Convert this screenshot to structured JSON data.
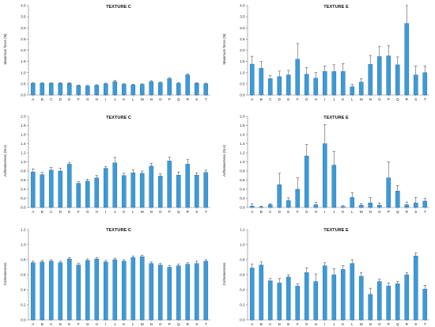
{
  "bar_color": "#3d9ad8",
  "bar_edge_color": "#1d5f8e",
  "chart_data": [
    {
      "type": "bar",
      "title": "TEXTURE C",
      "ylabel": "Maximum force (N)",
      "xlabel": "",
      "ylim": [
        0,
        4.0
      ],
      "yticks": [
        "0.0",
        "0.5",
        "1.0",
        "1.5",
        "2.0",
        "2.5",
        "3.0",
        "3.5",
        "4.0"
      ],
      "grid": false,
      "categories": [
        "A",
        "B",
        "C",
        "D",
        "E",
        "F",
        "G",
        "H",
        "I",
        "J",
        "K",
        "L",
        "M",
        "N",
        "O",
        "P",
        "Q",
        "R",
        "S",
        "T"
      ],
      "values": [
        0.52,
        0.52,
        0.52,
        0.52,
        0.52,
        0.42,
        0.4,
        0.43,
        0.5,
        0.6,
        0.48,
        0.45,
        0.47,
        0.6,
        0.55,
        0.73,
        0.52,
        0.9,
        0.52,
        0.5
      ],
      "errors": [
        0.03,
        0.03,
        0.03,
        0.03,
        0.03,
        0.03,
        0.03,
        0.03,
        0.03,
        0.05,
        0.03,
        0.03,
        0.03,
        0.04,
        0.03,
        0.05,
        0.04,
        0.04,
        0.03,
        0.03
      ]
    },
    {
      "type": "bar",
      "title": "TEXTURE E",
      "ylabel": "Maximum force (N)",
      "xlabel": "",
      "ylim": [
        0,
        4.0
      ],
      "yticks": [
        "0.0",
        "0.5",
        "1.0",
        "1.5",
        "2.0",
        "2.5",
        "3.0",
        "3.5",
        "4.0"
      ],
      "grid": false,
      "categories": [
        "A",
        "B",
        "C",
        "D",
        "E",
        "F",
        "G",
        "H",
        "I",
        "J",
        "K",
        "L",
        "M",
        "N",
        "O",
        "P",
        "Q",
        "R",
        "S",
        "T"
      ],
      "values": [
        1.38,
        1.2,
        0.73,
        0.82,
        0.9,
        1.6,
        0.93,
        0.75,
        1.05,
        1.05,
        1.05,
        0.37,
        0.58,
        1.37,
        1.72,
        1.75,
        1.35,
        3.2,
        0.9,
        1.0
      ],
      "errors": [
        0.35,
        0.3,
        0.15,
        0.25,
        0.2,
        0.7,
        0.3,
        0.25,
        0.25,
        0.3,
        0.35,
        0.1,
        0.15,
        0.4,
        0.45,
        0.45,
        0.35,
        0.8,
        0.4,
        0.3
      ]
    },
    {
      "type": "bar",
      "title": "TEXTURE C",
      "ylabel": "Adhesiveness (N·s)",
      "xlabel": "",
      "ylim": [
        0,
        2.0
      ],
      "yticks": [
        "0.0",
        "0.2",
        "0.4",
        "0.6",
        "0.8",
        "1.0",
        "1.2",
        "1.4",
        "1.6",
        "1.8",
        "2.0"
      ],
      "grid": false,
      "categories": [
        "A",
        "B",
        "C",
        "D",
        "E",
        "F",
        "G",
        "H",
        "I",
        "J",
        "K",
        "L",
        "M",
        "N",
        "O",
        "P",
        "Q",
        "R",
        "S",
        "T"
      ],
      "values": [
        0.78,
        0.72,
        0.82,
        0.8,
        0.95,
        0.53,
        0.58,
        0.65,
        0.86,
        0.98,
        0.7,
        0.76,
        0.75,
        0.91,
        0.69,
        1.02,
        0.71,
        0.95,
        0.71,
        0.77
      ],
      "errors": [
        0.07,
        0.05,
        0.06,
        0.06,
        0.04,
        0.04,
        0.04,
        0.05,
        0.04,
        0.12,
        0.05,
        0.06,
        0.05,
        0.06,
        0.05,
        0.08,
        0.07,
        0.1,
        0.05,
        0.05
      ]
    },
    {
      "type": "bar",
      "title": "TEXTURE E",
      "ylabel": "Adhesiveness (N·s)",
      "xlabel": "",
      "ylim": [
        0,
        2.0
      ],
      "yticks": [
        "0.0",
        "0.2",
        "0.4",
        "0.6",
        "0.8",
        "1.0",
        "1.2",
        "1.4",
        "1.6",
        "1.8",
        "2.0"
      ],
      "grid": false,
      "categories": [
        "A",
        "B",
        "C",
        "D",
        "E",
        "F",
        "G",
        "H",
        "I",
        "J",
        "K",
        "L",
        "M",
        "N",
        "O",
        "P",
        "Q",
        "R",
        "S",
        "T"
      ],
      "values": [
        0.03,
        0.01,
        0.06,
        0.5,
        0.15,
        0.4,
        1.13,
        0.06,
        1.4,
        0.93,
        0.02,
        0.22,
        0.05,
        0.1,
        0.05,
        0.65,
        0.36,
        0.06,
        0.1,
        0.14
      ],
      "errors": [
        0.05,
        0.02,
        0.02,
        0.25,
        0.06,
        0.25,
        0.25,
        0.05,
        0.42,
        0.3,
        0.02,
        0.1,
        0.03,
        0.12,
        0.05,
        0.35,
        0.12,
        0.06,
        0.12,
        0.06
      ]
    },
    {
      "type": "bar",
      "title": "TEXTURE C",
      "ylabel": "Cohesiveness",
      "xlabel": "",
      "ylim": [
        0,
        1.2
      ],
      "yticks": [
        "0.0",
        "0.2",
        "0.4",
        "0.6",
        "0.8",
        "1.0",
        "1.2"
      ],
      "grid": false,
      "categories": [
        "A",
        "B",
        "C",
        "D",
        "E",
        "F",
        "G",
        "H",
        "I",
        "J",
        "K",
        "L",
        "M",
        "N",
        "O",
        "P",
        "Q",
        "R",
        "S",
        "T"
      ],
      "values": [
        0.76,
        0.77,
        0.78,
        0.76,
        0.81,
        0.73,
        0.79,
        0.81,
        0.77,
        0.8,
        0.78,
        0.83,
        0.84,
        0.75,
        0.73,
        0.7,
        0.72,
        0.74,
        0.75,
        0.78
      ],
      "errors": [
        0.02,
        0.02,
        0.02,
        0.02,
        0.02,
        0.02,
        0.02,
        0.02,
        0.02,
        0.02,
        0.02,
        0.02,
        0.02,
        0.02,
        0.02,
        0.02,
        0.02,
        0.02,
        0.03,
        0.02
      ]
    },
    {
      "type": "bar",
      "title": "TEXTURE E",
      "ylabel": "Cohesiveness",
      "xlabel": "",
      "ylim": [
        0,
        1.2
      ],
      "yticks": [
        "0.0",
        "0.2",
        "0.4",
        "0.6",
        "0.8",
        "1.0",
        "1.2"
      ],
      "grid": false,
      "categories": [
        "A",
        "B",
        "C",
        "D",
        "E",
        "F",
        "G",
        "H",
        "I",
        "J",
        "K",
        "L",
        "M",
        "N",
        "O",
        "P",
        "Q",
        "R",
        "S",
        "T"
      ],
      "values": [
        0.69,
        0.73,
        0.52,
        0.49,
        0.57,
        0.45,
        0.63,
        0.51,
        0.72,
        0.6,
        0.67,
        0.75,
        0.58,
        0.34,
        0.51,
        0.45,
        0.48,
        0.6,
        0.85,
        0.41
      ],
      "errors": [
        0.05,
        0.04,
        0.03,
        0.06,
        0.03,
        0.03,
        0.06,
        0.1,
        0.04,
        0.08,
        0.05,
        0.05,
        0.05,
        0.08,
        0.03,
        0.04,
        0.03,
        0.03,
        0.04,
        0.05
      ]
    }
  ]
}
